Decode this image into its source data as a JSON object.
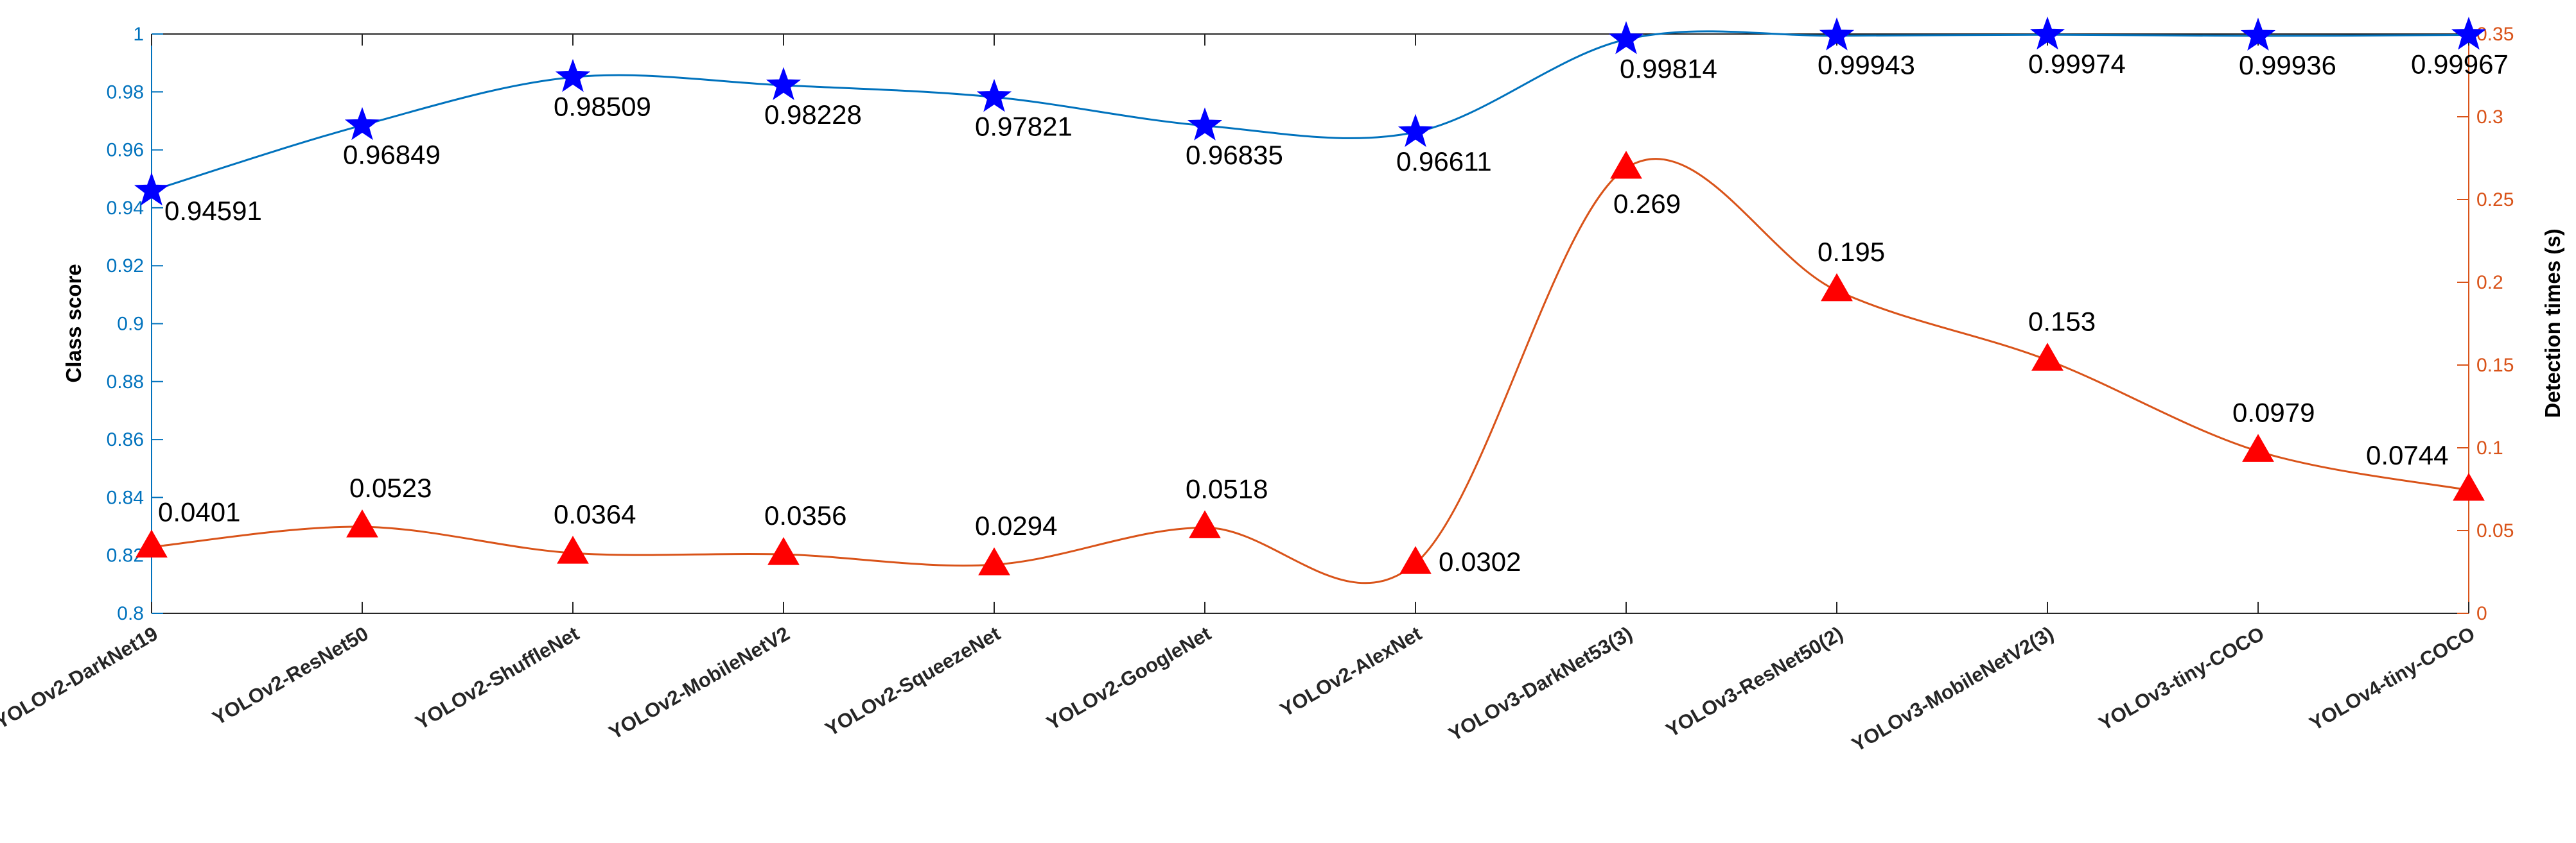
{
  "chart_data": {
    "type": "line",
    "categories": [
      "YOLOv2-DarkNet19",
      "YOLOv2-ResNet50",
      "YOLOv2-ShuffleNet",
      "YOLOv2-MobileNetV2",
      "YOLOv2-SqueezeNet",
      "YOLOv2-GoogleNet",
      "YOLOv2-AlexNet",
      "YOLOv3-DarkNet53(3)",
      "YOLOv3-ResNet50(2)",
      "YOLOv3-MobileNetV2(3)",
      "YOLOv3-tiny-COCO",
      "YOLOv4-tiny-COCO"
    ],
    "series": [
      {
        "name": "Class score",
        "axis": "left",
        "color": "#0072BD",
        "marker_color": "#0000FF",
        "marker": "star",
        "values": [
          0.94591,
          0.96849,
          0.98509,
          0.98228,
          0.97821,
          0.96835,
          0.96611,
          0.99814,
          0.99943,
          0.99974,
          0.99936,
          0.99967
        ],
        "labels": [
          "0.94591",
          "0.96849",
          "0.98509",
          "0.98228",
          "0.97821",
          "0.96835",
          "0.96611",
          "0.99814",
          "0.99943",
          "0.99974",
          "0.99936",
          "0.99967"
        ]
      },
      {
        "name": "Detection times (s)",
        "axis": "right",
        "color": "#D95319",
        "marker_color": "#FF0000",
        "marker": "triangle",
        "values": [
          0.0401,
          0.0523,
          0.0364,
          0.0356,
          0.0294,
          0.0518,
          0.0302,
          0.269,
          0.195,
          0.153,
          0.0979,
          0.0744
        ],
        "labels": [
          "0.0401",
          "0.0523",
          "0.0364",
          "0.0356",
          "0.0294",
          "0.0518",
          "0.0302",
          "0.269",
          "0.195",
          "0.153",
          "0.0979",
          "0.0744"
        ]
      }
    ],
    "ylabel": "Class score",
    "y2label": "Detection times (s)",
    "ylim": [
      0.8,
      1
    ],
    "y2lim": [
      0,
      0.35
    ],
    "yticks": [
      0.8,
      0.82,
      0.84,
      0.86,
      0.88,
      0.9,
      0.92,
      0.94,
      0.96,
      0.98,
      1
    ],
    "ytick_labels": [
      "0.8",
      "0.82",
      "0.84",
      "0.86",
      "0.88",
      "0.9",
      "0.92",
      "0.94",
      "0.96",
      "0.98",
      "1"
    ],
    "y2ticks": [
      0,
      0.05,
      0.1,
      0.15,
      0.2,
      0.25,
      0.3,
      0.35
    ],
    "y2tick_labels": [
      "0",
      "0.05",
      "0.1",
      "0.15",
      "0.2",
      "0.25",
      "0.3",
      "0.35"
    ],
    "grid": false
  }
}
